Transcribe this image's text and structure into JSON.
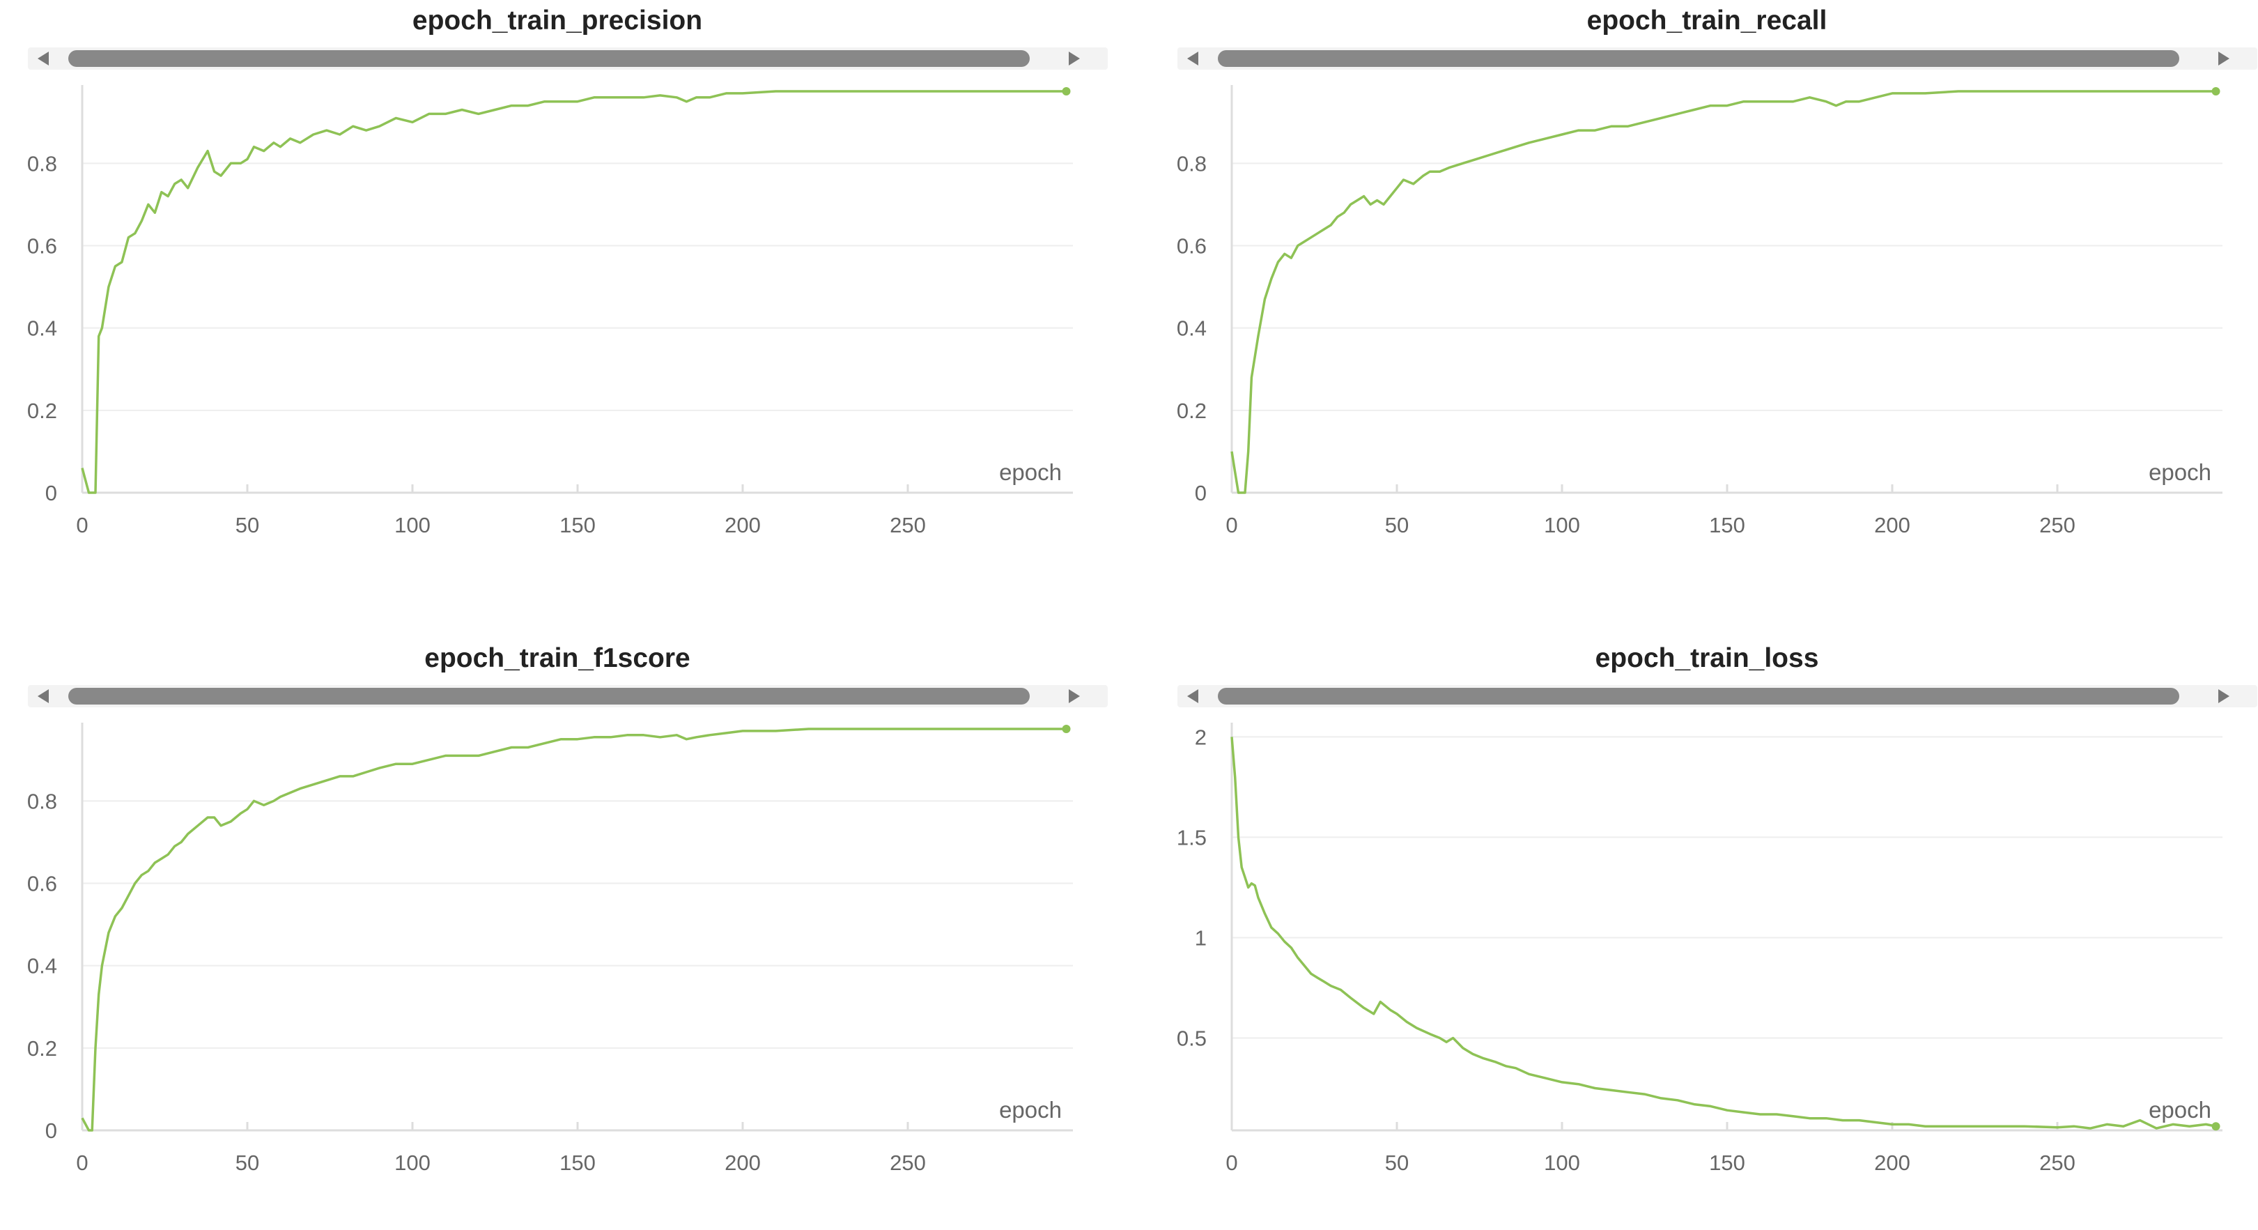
{
  "accent_color": "#8ec255",
  "chart_data": [
    {
      "type": "line",
      "title": "epoch_train_precision",
      "xlabel": "epoch",
      "xlim": [
        0,
        300
      ],
      "ylim": [
        0,
        0.98
      ],
      "xticks": [
        0,
        50,
        100,
        150,
        200,
        250
      ],
      "yticks": [
        0,
        0.2,
        0.4,
        0.6,
        0.8
      ],
      "ytick_labels": [
        "0",
        "0.2",
        "0.4",
        "0.6",
        "0.8"
      ],
      "grid": true,
      "series": [
        {
          "x": [
            0,
            2,
            3,
            4,
            5,
            6,
            8,
            10,
            12,
            14,
            16,
            18,
            20,
            22,
            24,
            26,
            28,
            30,
            32,
            35,
            38,
            40,
            42,
            45,
            48,
            50,
            52,
            55,
            58,
            60,
            63,
            66,
            70,
            74,
            78,
            82,
            86,
            90,
            95,
            100,
            105,
            110,
            115,
            120,
            125,
            130,
            135,
            140,
            145,
            150,
            155,
            160,
            165,
            170,
            175,
            180,
            183,
            186,
            190,
            195,
            200,
            210,
            220,
            230,
            240,
            250,
            260,
            270,
            280,
            290,
            298
          ],
          "y": [
            0.06,
            0.0,
            0.0,
            0.0,
            0.38,
            0.4,
            0.5,
            0.55,
            0.56,
            0.62,
            0.63,
            0.66,
            0.7,
            0.68,
            0.73,
            0.72,
            0.75,
            0.76,
            0.74,
            0.79,
            0.83,
            0.78,
            0.77,
            0.8,
            0.8,
            0.81,
            0.84,
            0.83,
            0.85,
            0.84,
            0.86,
            0.85,
            0.87,
            0.88,
            0.87,
            0.89,
            0.88,
            0.89,
            0.91,
            0.9,
            0.92,
            0.92,
            0.93,
            0.92,
            0.93,
            0.94,
            0.94,
            0.95,
            0.95,
            0.95,
            0.96,
            0.96,
            0.96,
            0.96,
            0.965,
            0.96,
            0.95,
            0.96,
            0.96,
            0.97,
            0.97,
            0.975,
            0.975,
            0.975,
            0.975,
            0.975,
            0.975,
            0.975,
            0.975,
            0.975,
            0.975
          ]
        }
      ]
    },
    {
      "type": "line",
      "title": "epoch_train_recall",
      "xlabel": "epoch",
      "xlim": [
        0,
        300
      ],
      "ylim": [
        0,
        0.98
      ],
      "xticks": [
        0,
        50,
        100,
        150,
        200,
        250
      ],
      "yticks": [
        0,
        0.2,
        0.4,
        0.6,
        0.8
      ],
      "ytick_labels": [
        "0",
        "0.2",
        "0.4",
        "0.6",
        "0.8"
      ],
      "grid": true,
      "series": [
        {
          "x": [
            0,
            1,
            2,
            3,
            4,
            5,
            6,
            8,
            10,
            12,
            14,
            16,
            18,
            20,
            22,
            24,
            26,
            28,
            30,
            32,
            34,
            36,
            38,
            40,
            42,
            44,
            46,
            48,
            50,
            52,
            55,
            58,
            60,
            63,
            66,
            70,
            74,
            78,
            82,
            86,
            90,
            95,
            100,
            105,
            110,
            115,
            120,
            125,
            130,
            135,
            140,
            145,
            150,
            155,
            160,
            165,
            170,
            175,
            180,
            183,
            186,
            190,
            195,
            200,
            210,
            220,
            230,
            240,
            250,
            260,
            270,
            280,
            290,
            298
          ],
          "y": [
            0.1,
            0.05,
            0.0,
            0.0,
            0.0,
            0.1,
            0.28,
            0.38,
            0.47,
            0.52,
            0.56,
            0.58,
            0.57,
            0.6,
            0.61,
            0.62,
            0.63,
            0.64,
            0.65,
            0.67,
            0.68,
            0.7,
            0.71,
            0.72,
            0.7,
            0.71,
            0.7,
            0.72,
            0.74,
            0.76,
            0.75,
            0.77,
            0.78,
            0.78,
            0.79,
            0.8,
            0.81,
            0.82,
            0.83,
            0.84,
            0.85,
            0.86,
            0.87,
            0.88,
            0.88,
            0.89,
            0.89,
            0.9,
            0.91,
            0.92,
            0.93,
            0.94,
            0.94,
            0.95,
            0.95,
            0.95,
            0.95,
            0.96,
            0.95,
            0.94,
            0.95,
            0.95,
            0.96,
            0.97,
            0.97,
            0.975,
            0.975,
            0.975,
            0.975,
            0.975,
            0.975,
            0.975,
            0.975,
            0.975
          ]
        }
      ]
    },
    {
      "type": "line",
      "title": "epoch_train_f1score",
      "xlabel": "epoch",
      "xlim": [
        0,
        300
      ],
      "ylim": [
        0,
        0.98
      ],
      "xticks": [
        0,
        50,
        100,
        150,
        200,
        250
      ],
      "yticks": [
        0,
        0.2,
        0.4,
        0.6,
        0.8
      ],
      "ytick_labels": [
        "0",
        "0.2",
        "0.4",
        "0.6",
        "0.8"
      ],
      "grid": true,
      "series": [
        {
          "x": [
            0,
            2,
            3,
            4,
            5,
            6,
            8,
            10,
            12,
            14,
            16,
            18,
            20,
            22,
            24,
            26,
            28,
            30,
            32,
            35,
            38,
            40,
            42,
            45,
            48,
            50,
            52,
            55,
            58,
            60,
            63,
            66,
            70,
            74,
            78,
            82,
            86,
            90,
            95,
            100,
            105,
            110,
            115,
            120,
            125,
            130,
            135,
            140,
            145,
            150,
            155,
            160,
            165,
            170,
            175,
            180,
            183,
            186,
            190,
            195,
            200,
            210,
            220,
            230,
            240,
            250,
            260,
            270,
            280,
            290,
            298
          ],
          "y": [
            0.03,
            0.0,
            0.0,
            0.2,
            0.33,
            0.4,
            0.48,
            0.52,
            0.54,
            0.57,
            0.6,
            0.62,
            0.63,
            0.65,
            0.66,
            0.67,
            0.69,
            0.7,
            0.72,
            0.74,
            0.76,
            0.76,
            0.74,
            0.75,
            0.77,
            0.78,
            0.8,
            0.79,
            0.8,
            0.81,
            0.82,
            0.83,
            0.84,
            0.85,
            0.86,
            0.86,
            0.87,
            0.88,
            0.89,
            0.89,
            0.9,
            0.91,
            0.91,
            0.91,
            0.92,
            0.93,
            0.93,
            0.94,
            0.95,
            0.95,
            0.955,
            0.955,
            0.96,
            0.96,
            0.955,
            0.96,
            0.95,
            0.955,
            0.96,
            0.965,
            0.97,
            0.97,
            0.975,
            0.975,
            0.975,
            0.975,
            0.975,
            0.975,
            0.975,
            0.975,
            0.975
          ]
        }
      ]
    },
    {
      "type": "line",
      "title": "epoch_train_loss",
      "xlabel": "epoch",
      "xlim": [
        0,
        300
      ],
      "ylim": [
        0.04,
        2.05
      ],
      "xticks": [
        0,
        50,
        100,
        150,
        200,
        250
      ],
      "yticks": [
        0.5,
        1,
        1.5,
        2
      ],
      "ytick_labels": [
        "0.5",
        "1",
        "1.5",
        "2"
      ],
      "grid": true,
      "series": [
        {
          "x": [
            0,
            1,
            2,
            3,
            4,
            5,
            6,
            7,
            8,
            10,
            12,
            14,
            16,
            18,
            20,
            22,
            24,
            26,
            28,
            30,
            33,
            36,
            40,
            43,
            45,
            48,
            50,
            53,
            56,
            60,
            63,
            65,
            67,
            70,
            73,
            76,
            80,
            83,
            86,
            90,
            95,
            100,
            105,
            110,
            115,
            120,
            125,
            130,
            135,
            140,
            145,
            150,
            155,
            160,
            165,
            170,
            175,
            180,
            185,
            190,
            195,
            200,
            205,
            210,
            220,
            230,
            240,
            250,
            255,
            260,
            265,
            270,
            275,
            280,
            285,
            290,
            295,
            298
          ],
          "y": [
            2.0,
            1.8,
            1.5,
            1.35,
            1.3,
            1.25,
            1.27,
            1.26,
            1.2,
            1.12,
            1.05,
            1.02,
            0.98,
            0.95,
            0.9,
            0.86,
            0.82,
            0.8,
            0.78,
            0.76,
            0.74,
            0.7,
            0.65,
            0.62,
            0.68,
            0.64,
            0.62,
            0.58,
            0.55,
            0.52,
            0.5,
            0.48,
            0.5,
            0.45,
            0.42,
            0.4,
            0.38,
            0.36,
            0.35,
            0.32,
            0.3,
            0.28,
            0.27,
            0.25,
            0.24,
            0.23,
            0.22,
            0.2,
            0.19,
            0.17,
            0.16,
            0.14,
            0.13,
            0.12,
            0.12,
            0.11,
            0.1,
            0.1,
            0.09,
            0.09,
            0.08,
            0.07,
            0.07,
            0.06,
            0.06,
            0.06,
            0.06,
            0.055,
            0.06,
            0.05,
            0.07,
            0.06,
            0.09,
            0.05,
            0.07,
            0.06,
            0.07,
            0.06
          ]
        }
      ]
    }
  ]
}
